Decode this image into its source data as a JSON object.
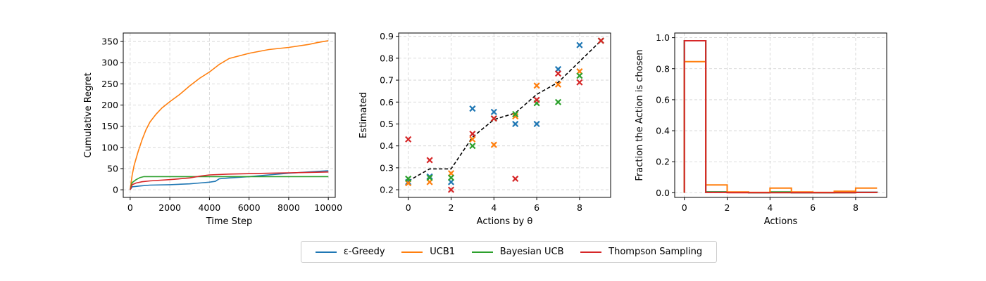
{
  "colors": {
    "eps_greedy": "#1f77b4",
    "ucb1": "#ff7f0e",
    "bayesian_ucb": "#2ca02c",
    "thompson": "#d62728",
    "true_theta": "#000000"
  },
  "legend": {
    "items": [
      {
        "key": "eps_greedy",
        "label": "ε-Greedy"
      },
      {
        "key": "ucb1",
        "label": "UCB1"
      },
      {
        "key": "bayesian_ucb",
        "label": "Bayesian UCB"
      },
      {
        "key": "thompson",
        "label": "Thompson Sampling"
      }
    ]
  },
  "chart_data": [
    {
      "type": "line",
      "xlabel": "Time Step",
      "ylabel": "Cumulative Regret",
      "xlim": [
        -350,
        10350
      ],
      "ylim": [
        -18,
        370
      ],
      "xticks": [
        0,
        2000,
        4000,
        6000,
        8000,
        10000
      ],
      "yticks": [
        0,
        50,
        100,
        150,
        200,
        250,
        300,
        350
      ],
      "grid": true,
      "series": [
        {
          "name": "ε-Greedy",
          "key": "eps_greedy",
          "x": [
            0,
            100,
            500,
            1000,
            2000,
            3000,
            3500,
            4000,
            4300,
            4500,
            5000,
            6000,
            7000,
            8000,
            9000,
            10000
          ],
          "y": [
            0,
            7,
            9,
            11,
            12,
            14,
            16,
            18,
            20,
            26,
            28,
            31,
            35,
            39,
            42,
            45
          ]
        },
        {
          "name": "UCB1",
          "key": "ucb1",
          "x": [
            0,
            100,
            200,
            400,
            600,
            800,
            1000,
            1300,
            1600,
            2000,
            2500,
            3000,
            3500,
            4000,
            4500,
            5000,
            6000,
            7000,
            8000,
            9000,
            9500,
            10000
          ],
          "y": [
            0,
            35,
            58,
            90,
            118,
            142,
            160,
            178,
            193,
            208,
            225,
            245,
            263,
            278,
            296,
            310,
            322,
            331,
            336,
            343,
            348,
            352
          ]
        },
        {
          "name": "Bayesian UCB",
          "key": "bayesian_ucb",
          "x": [
            0,
            100,
            300,
            500,
            700,
            1000,
            2000,
            4000,
            6000,
            8000,
            10000
          ],
          "y": [
            0,
            17,
            24,
            29,
            31,
            31,
            31,
            31,
            31,
            31,
            31
          ]
        },
        {
          "name": "Thompson Sampling",
          "key": "thompson",
          "x": [
            0,
            100,
            300,
            600,
            1000,
            2000,
            3000,
            3500,
            4000,
            5000,
            6000,
            7000,
            8000,
            9000,
            10000
          ],
          "y": [
            0,
            12,
            16,
            19,
            21,
            24,
            28,
            32,
            35,
            37,
            38,
            39,
            40,
            41,
            42
          ]
        }
      ]
    },
    {
      "type": "scatter",
      "xlabel": "Actions by θ",
      "ylabel": "Estimated",
      "xlim": [
        -0.45,
        9.45
      ],
      "ylim": [
        0.165,
        0.915
      ],
      "xticks": [
        0,
        2,
        4,
        6,
        8
      ],
      "yticks": [
        0.2,
        0.3,
        0.4,
        0.5,
        0.6,
        0.7,
        0.8,
        0.9
      ],
      "grid": true,
      "true_theta": {
        "x": [
          0,
          1,
          2,
          3,
          4,
          5,
          6,
          7,
          8,
          9
        ],
        "y": [
          0.24,
          0.295,
          0.295,
          0.44,
          0.52,
          0.55,
          0.635,
          0.69,
          0.785,
          0.88
        ]
      },
      "series": [
        {
          "name": "ε-Greedy",
          "key": "eps_greedy",
          "x": [
            0,
            1,
            2,
            3,
            4,
            5,
            6,
            7,
            8,
            9
          ],
          "y": [
            0.235,
            0.26,
            0.235,
            0.57,
            0.555,
            0.5,
            0.5,
            0.75,
            0.86,
            0.88
          ]
        },
        {
          "name": "UCB1",
          "key": "ucb1",
          "x": [
            0,
            1,
            2,
            3,
            4,
            5,
            6,
            7,
            8,
            9
          ],
          "y": [
            0.23,
            0.235,
            0.275,
            0.43,
            0.405,
            0.535,
            0.675,
            0.68,
            0.74,
            0.88
          ]
        },
        {
          "name": "Bayesian UCB",
          "key": "bayesian_ucb",
          "x": [
            0,
            1,
            2,
            3,
            4,
            5,
            6,
            7,
            8,
            9
          ],
          "y": [
            0.25,
            0.255,
            0.255,
            0.4,
            0.525,
            0.545,
            0.595,
            0.6,
            0.72,
            0.88
          ]
        },
        {
          "name": "Thompson Sampling",
          "key": "thompson",
          "x": [
            0,
            1,
            2,
            3,
            4,
            5,
            6,
            7,
            8,
            9
          ],
          "y": [
            0.43,
            0.335,
            0.2,
            0.455,
            0.525,
            0.25,
            0.61,
            0.73,
            0.69,
            0.88
          ]
        }
      ]
    },
    {
      "type": "line",
      "step": true,
      "xlabel": "Actions",
      "ylabel": "Fraction the Action is chosen",
      "xlim": [
        -0.45,
        9.45
      ],
      "ylim": [
        -0.03,
        1.03
      ],
      "xticks": [
        0,
        2,
        4,
        6,
        8
      ],
      "yticks": [
        0.0,
        0.2,
        0.4,
        0.6,
        0.8,
        1.0
      ],
      "grid": true,
      "series": [
        {
          "name": "ε-Greedy",
          "key": "eps_greedy",
          "values": [
            0.98,
            0.005,
            0.002,
            0.001,
            0.002,
            0.001,
            0.001,
            0.002,
            0.003,
            0.002
          ]
        },
        {
          "name": "Bayesian UCB",
          "key": "bayesian_ucb",
          "values": [
            0.98,
            0.005,
            0.003,
            0.001,
            0.005,
            0.001,
            0.001,
            0.001,
            0.002,
            0.001
          ]
        },
        {
          "name": "UCB1",
          "key": "ucb1",
          "values": [
            0.845,
            0.05,
            0.005,
            0.002,
            0.03,
            0.005,
            0.002,
            0.01,
            0.03,
            0.03
          ]
        },
        {
          "name": "Thompson Sampling",
          "key": "thompson",
          "values": [
            0.98,
            0.002,
            0.001,
            0.001,
            0.001,
            0.001,
            0.001,
            0.001,
            0.002,
            0.001
          ]
        }
      ]
    }
  ]
}
